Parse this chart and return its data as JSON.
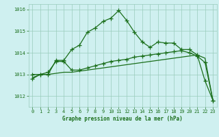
{
  "title": "Graphe pression niveau de la mer (hPa)",
  "background_color": "#cff0f0",
  "grid_color": "#99ccbb",
  "line_color": "#1a6e1a",
  "xlim": [
    -0.5,
    23.5
  ],
  "ylim": [
    1011.5,
    1016.25
  ],
  "yticks": [
    1012,
    1013,
    1014,
    1015,
    1016
  ],
  "xticks": [
    0,
    1,
    2,
    3,
    4,
    5,
    6,
    7,
    8,
    9,
    10,
    11,
    12,
    13,
    14,
    15,
    16,
    17,
    18,
    19,
    20,
    21,
    22,
    23
  ],
  "series1": [
    1012.8,
    1013.0,
    1013.0,
    1013.65,
    1013.65,
    1014.15,
    1014.35,
    1014.95,
    1015.15,
    1015.45,
    1015.6,
    1015.95,
    1015.5,
    1014.95,
    1014.5,
    1014.25,
    1014.5,
    1014.45,
    1014.45,
    1014.15,
    1014.15,
    1013.9,
    1012.7,
    1011.8
  ],
  "series2": [
    1013.0,
    1013.0,
    1013.1,
    1013.6,
    1013.6,
    1013.2,
    1013.2,
    1013.3,
    1013.4,
    1013.5,
    1013.6,
    1013.65,
    1013.7,
    1013.8,
    1013.85,
    1013.9,
    1013.95,
    1014.0,
    1014.05,
    1014.1,
    1014.0,
    1013.85,
    1013.55,
    1011.8
  ],
  "series3": [
    1012.85,
    1013.0,
    1013.0,
    1013.05,
    1013.1,
    1013.1,
    1013.15,
    1013.2,
    1013.25,
    1013.3,
    1013.35,
    1013.4,
    1013.45,
    1013.5,
    1013.55,
    1013.6,
    1013.65,
    1013.7,
    1013.75,
    1013.8,
    1013.85,
    1013.9,
    1013.75,
    1011.8
  ]
}
